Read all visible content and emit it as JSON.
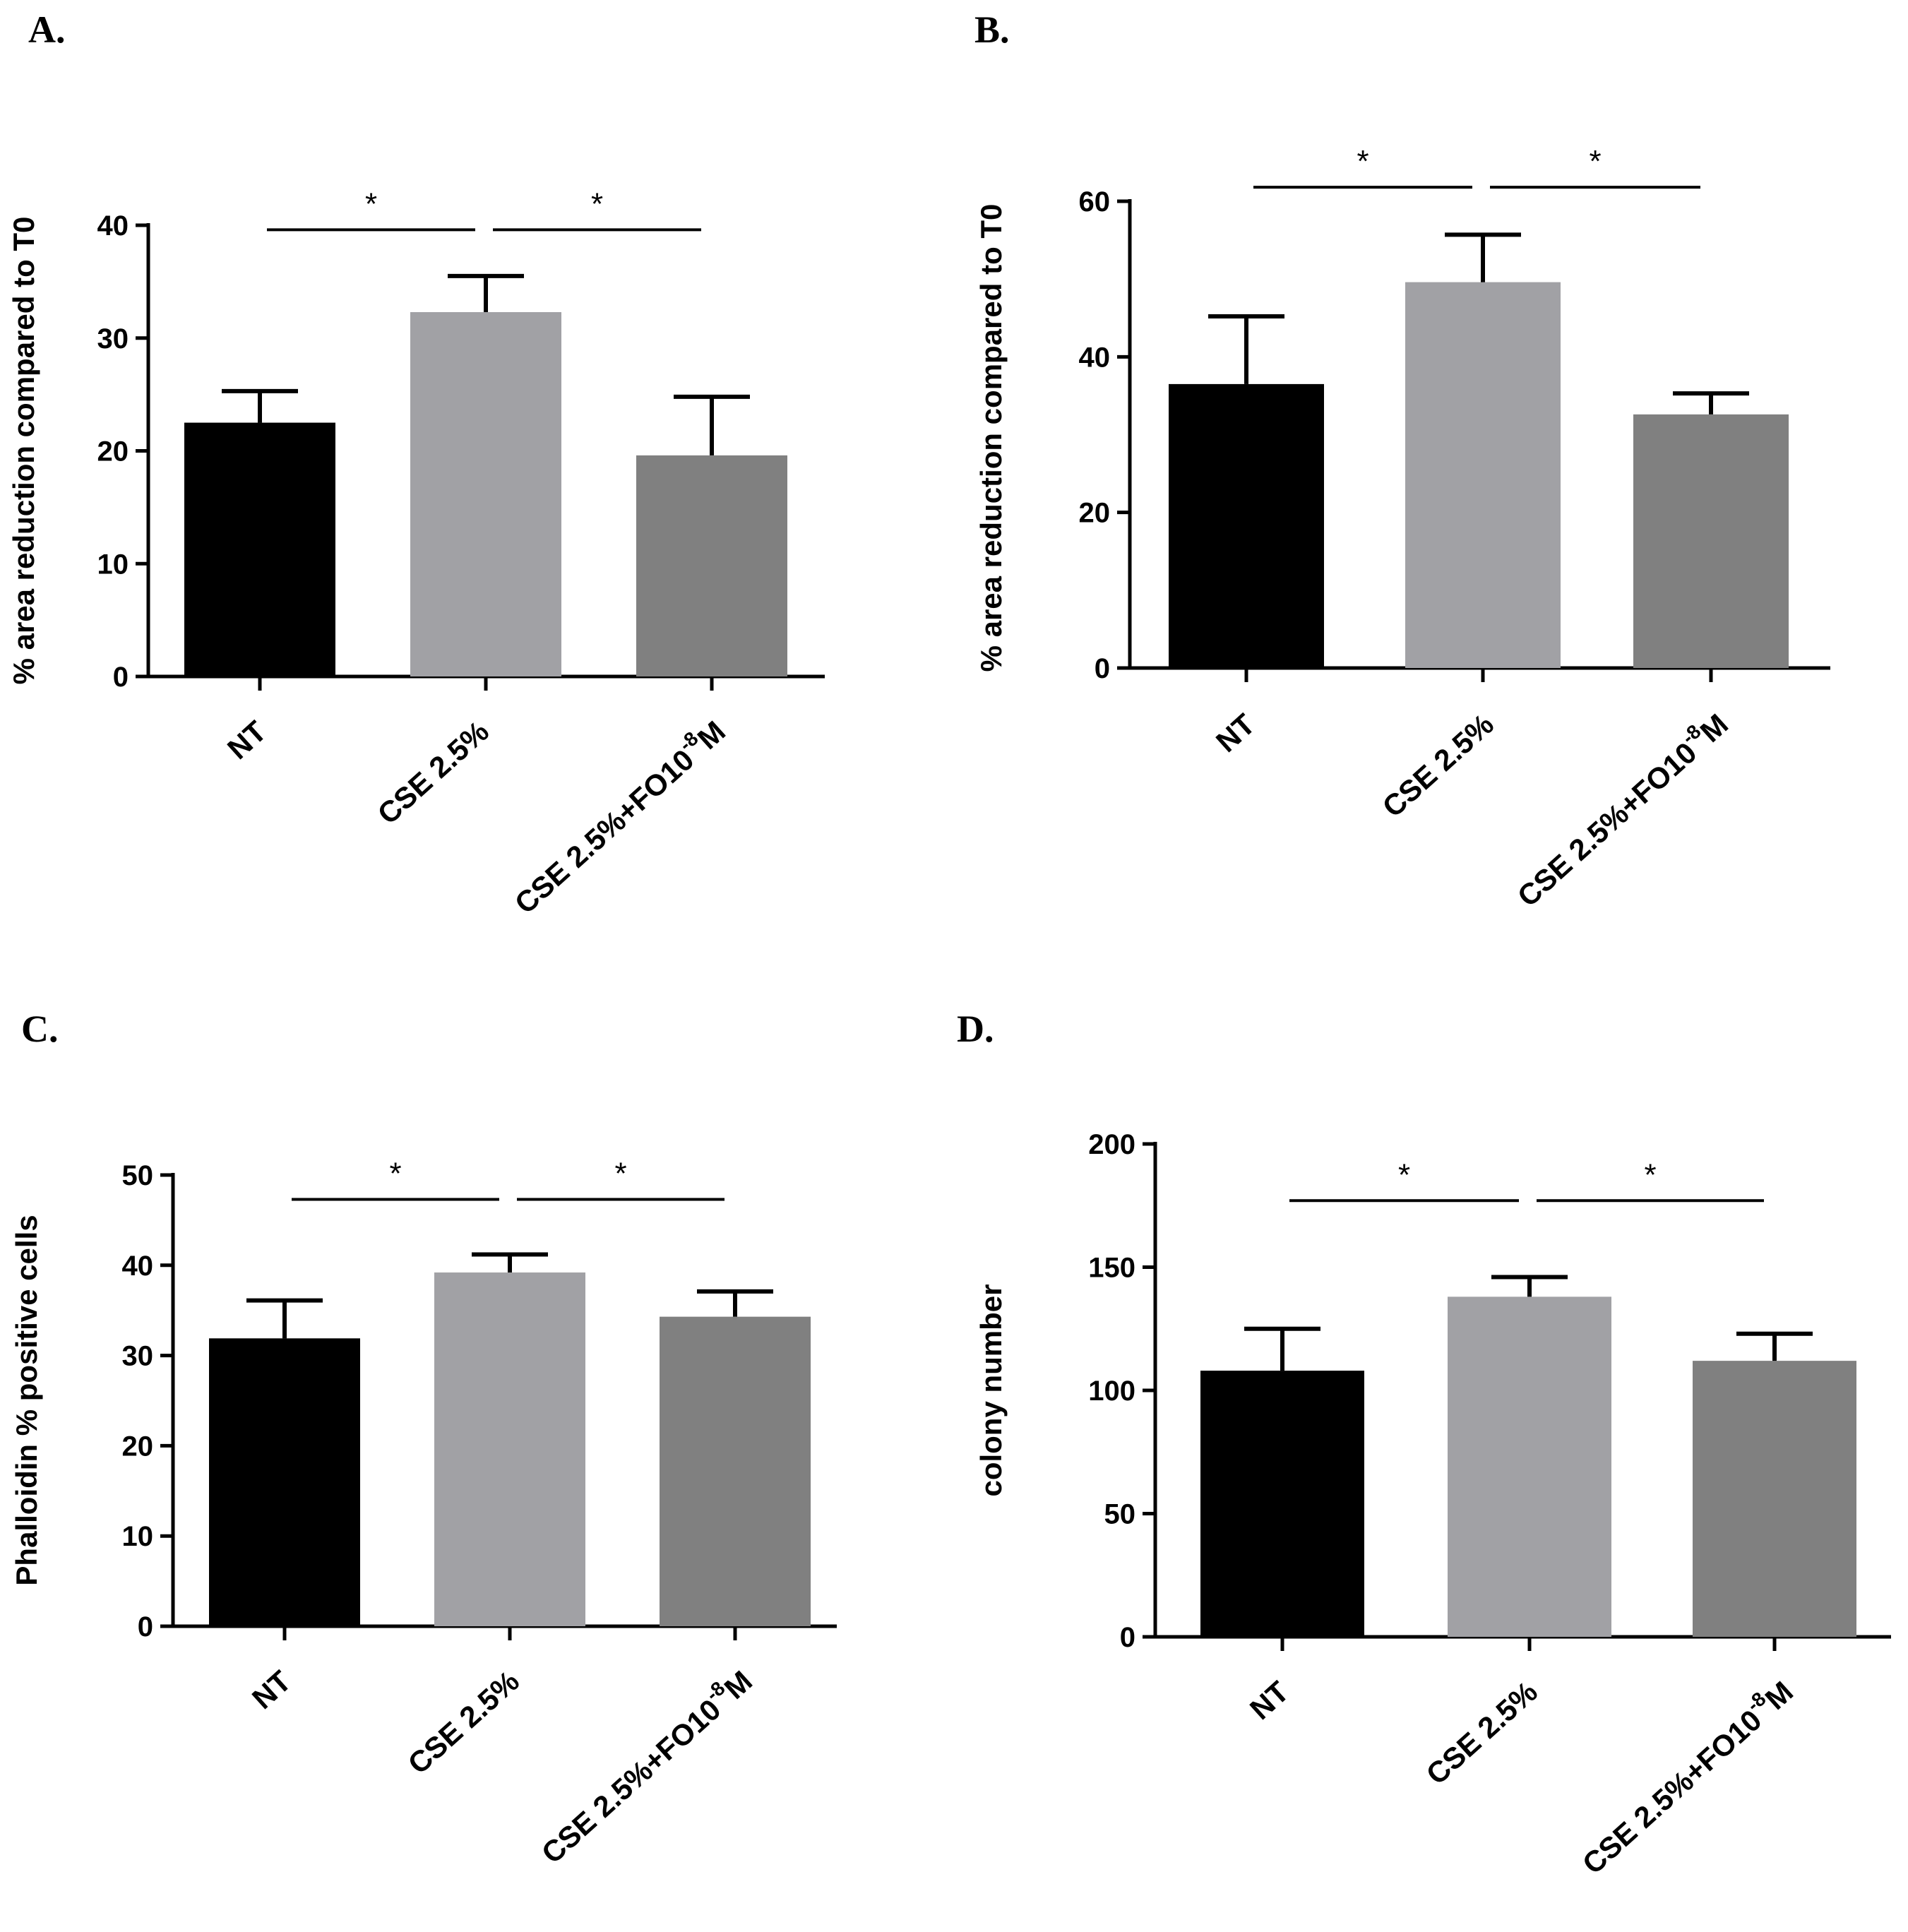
{
  "chart_data": [
    {
      "panel": "A.",
      "type": "bar",
      "ylabel": "% area reduction compared to T0",
      "categories": [
        {
          "label": "NT"
        },
        {
          "label": "CSE 2.5%"
        },
        {
          "label": "CSE 2.5%+FO10",
          "sup": "-8",
          "suffix": "M"
        }
      ],
      "values": [
        22.5,
        32.3,
        19.6
      ],
      "errors": [
        2.8,
        3.2,
        5.2
      ],
      "colors": [
        "#000000",
        "#a1a1a5",
        "#808080"
      ],
      "ylim": [
        0,
        40
      ],
      "yticks": [
        0,
        10,
        20,
        30,
        40
      ],
      "significance": [
        {
          "from": 0,
          "to": 1,
          "label": "*",
          "y": 39.6
        },
        {
          "from": 1,
          "to": 2,
          "label": "*",
          "y": 39.6
        }
      ]
    },
    {
      "panel": "B.",
      "type": "bar",
      "ylabel": "% area reduction compared to T0",
      "categories": [
        {
          "label": "NT"
        },
        {
          "label": "CSE 2.5%"
        },
        {
          "label": "CSE 2.5%+FO10",
          "sup": "-8",
          "suffix": "M"
        }
      ],
      "values": [
        36.5,
        49.6,
        32.6
      ],
      "errors": [
        8.7,
        6.1,
        2.7
      ],
      "colors": [
        "#000000",
        "#a1a1a5",
        "#808080"
      ],
      "ylim": [
        0,
        60
      ],
      "yticks": [
        0,
        20,
        40,
        60
      ],
      "significance": [
        {
          "from": 0,
          "to": 1,
          "label": "*",
          "y": 61.8
        },
        {
          "from": 1,
          "to": 2,
          "label": "*",
          "y": 61.8
        }
      ]
    },
    {
      "panel": "C.",
      "type": "bar",
      "ylabel": "Phalloidin % positive cells",
      "categories": [
        {
          "label": "NT"
        },
        {
          "label": "CSE 2.5%"
        },
        {
          "label": "CSE 2.5%+FO10",
          "sup": "-8",
          "suffix": "M"
        }
      ],
      "values": [
        31.9,
        39.2,
        34.3
      ],
      "errors": [
        4.2,
        2.0,
        2.8
      ],
      "colors": [
        "#000000",
        "#a1a1a5",
        "#808080"
      ],
      "ylim": [
        0,
        50
      ],
      "yticks": [
        0,
        10,
        20,
        30,
        40,
        50
      ],
      "significance": [
        {
          "from": 0,
          "to": 1,
          "label": "*",
          "y": 47.3
        },
        {
          "from": 1,
          "to": 2,
          "label": "*",
          "y": 47.3
        }
      ]
    },
    {
      "panel": "D.",
      "type": "bar",
      "ylabel": "colony number",
      "categories": [
        {
          "label": "NT"
        },
        {
          "label": "CSE 2.5%"
        },
        {
          "label": "CSE 2.5%+FO10",
          "sup": "-8",
          "suffix": "M"
        }
      ],
      "values": [
        108,
        138,
        112
      ],
      "errors": [
        17,
        8,
        11
      ],
      "colors": [
        "#000000",
        "#a1a1a5",
        "#808080"
      ],
      "ylim": [
        0,
        200
      ],
      "yticks": [
        0,
        50,
        100,
        150,
        200
      ],
      "significance": [
        {
          "from": 0,
          "to": 1,
          "label": "*",
          "y": 177
        },
        {
          "from": 1,
          "to": 2,
          "label": "*",
          "y": 177
        }
      ]
    }
  ]
}
